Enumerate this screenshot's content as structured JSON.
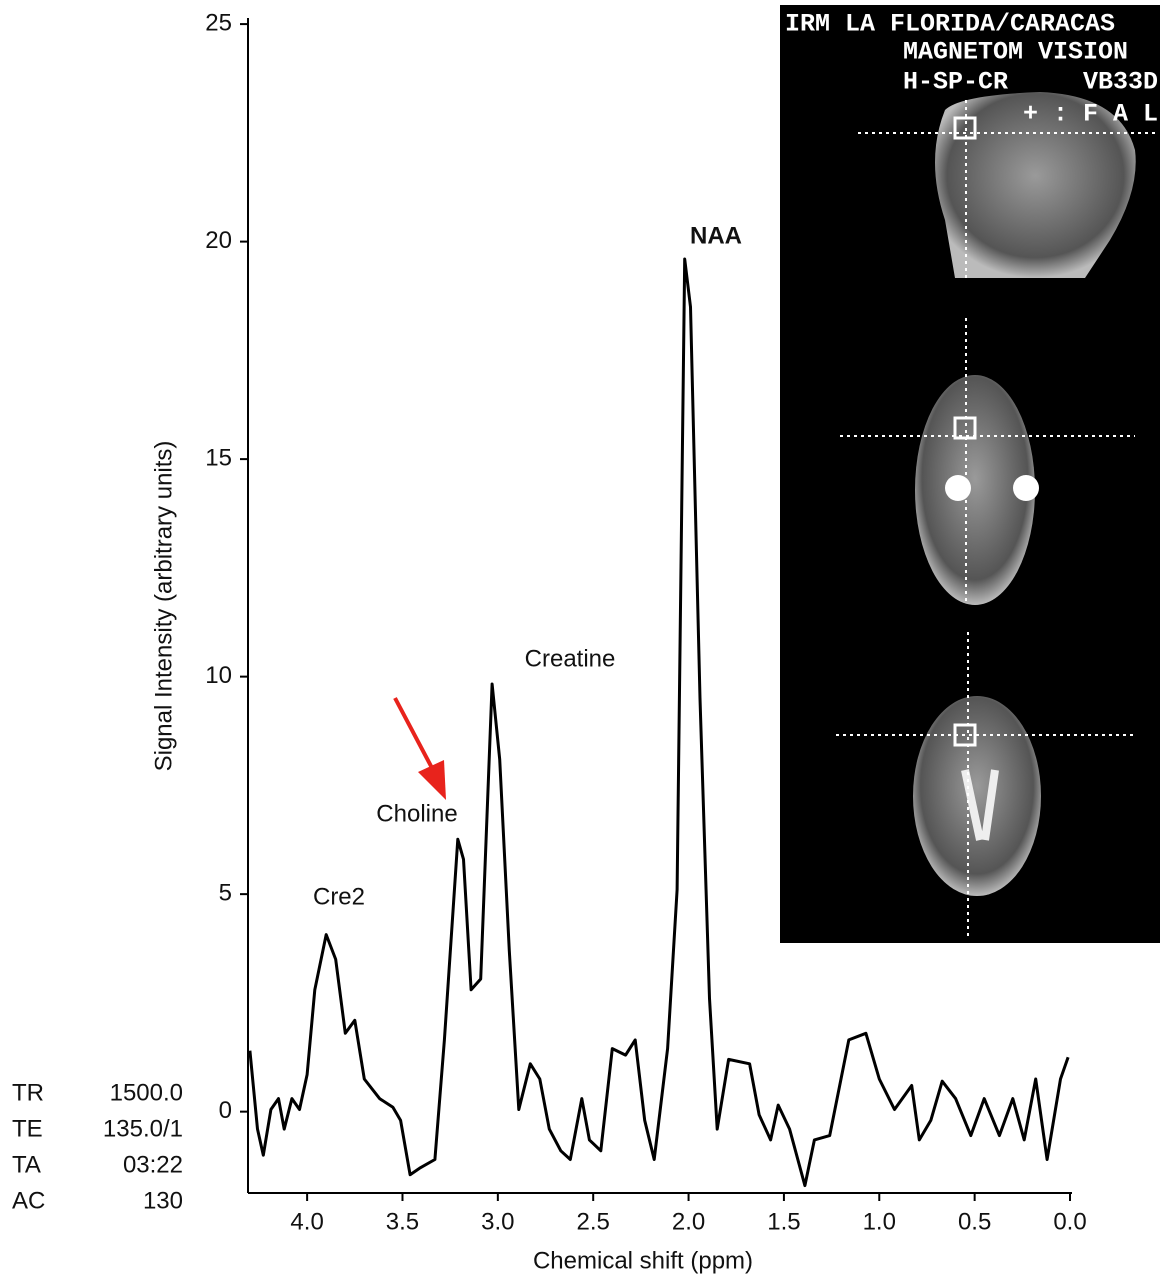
{
  "chart_data": {
    "type": "line",
    "x_label": "Chemical shift (ppm)",
    "y_label": "Signal Intensity (arbitrary units)",
    "color": "#000000",
    "x": [
      4.3,
      4.26,
      4.23,
      4.19,
      4.15,
      4.12,
      4.08,
      4.04,
      4.0,
      3.96,
      3.9,
      3.85,
      3.8,
      3.75,
      3.7,
      3.62,
      3.55,
      3.51,
      3.46,
      3.41,
      3.33,
      3.28,
      3.21,
      3.18,
      3.14,
      3.09,
      3.03,
      2.99,
      2.94,
      2.89,
      2.83,
      2.78,
      2.73,
      2.67,
      2.62,
      2.56,
      2.52,
      2.46,
      2.4,
      2.33,
      2.28,
      2.23,
      2.18,
      2.11,
      2.06,
      2.02,
      1.99,
      1.94,
      1.89,
      1.85,
      1.79,
      1.68,
      1.63,
      1.57,
      1.53,
      1.47,
      1.39,
      1.34,
      1.26,
      1.16,
      1.07,
      1.0,
      0.92,
      0.83,
      0.79,
      0.73,
      0.67,
      0.6,
      0.52,
      0.45,
      0.37,
      0.3,
      0.24,
      0.18,
      0.12,
      0.05,
      0.01
    ],
    "values": [
      1.4,
      -0.4,
      -1.0,
      0.05,
      0.3,
      -0.4,
      0.3,
      0.05,
      0.85,
      2.8,
      4.07,
      3.5,
      1.8,
      2.1,
      0.75,
      0.3,
      0.1,
      -0.2,
      -1.45,
      -1.3,
      -1.1,
      1.65,
      6.26,
      5.8,
      2.8,
      3.05,
      9.83,
      8.1,
      3.7,
      0.05,
      1.1,
      0.75,
      -0.4,
      -0.9,
      -1.1,
      0.3,
      -0.65,
      -0.9,
      1.45,
      1.3,
      1.65,
      -0.2,
      -1.1,
      1.45,
      5.1,
      19.6,
      18.5,
      9.5,
      2.6,
      -0.4,
      1.2,
      1.1,
      -0.07,
      -0.65,
      0.15,
      -0.4,
      -1.7,
      -0.65,
      -0.55,
      1.65,
      1.8,
      0.75,
      0.05,
      0.6,
      -0.65,
      -0.2,
      0.7,
      0.3,
      -0.55,
      0.3,
      -0.55,
      0.3,
      -0.65,
      0.75,
      -1.1,
      0.75,
      1.25
    ],
    "xlim": [
      4.31,
      0
    ],
    "ylim": [
      -1.87,
      25.14
    ],
    "xticks": [
      {
        "value": 4,
        "label": "4.0"
      },
      3.5,
      {
        "value": 3,
        "label": "3.0"
      },
      2.5,
      {
        "value": 2,
        "label": "2.0"
      },
      1.5,
      {
        "value": 1,
        "label": "1.0"
      },
      0.5,
      {
        "value": 0,
        "label": "0.0"
      }
    ],
    "yticks": [
      0,
      5,
      10,
      15,
      20,
      25
    ],
    "annotations": [
      "NAA",
      "Creatine",
      "Choline",
      "Cre2"
    ]
  },
  "acquisition_params": [
    [
      "TR",
      "1500.0"
    ],
    [
      "TE",
      "135.0/1"
    ],
    [
      "TA",
      "03:22"
    ],
    [
      "AC",
      "130"
    ]
  ],
  "inset_text": [
    "IRM LA FLORIDA/CARACAS",
    "MAGNETOM VISION",
    "H-SP-CR",
    "VB33D",
    "+ : F A L"
  ]
}
